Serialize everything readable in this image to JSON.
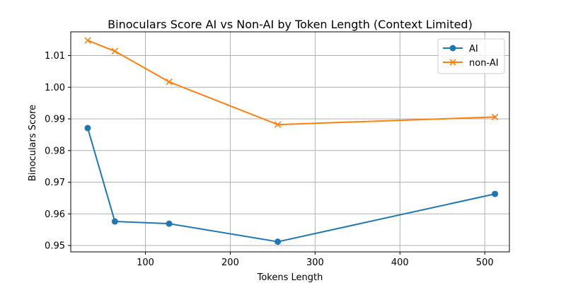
{
  "chart_data": {
    "type": "line",
    "title": "Binoculars Score AI vs Non-AI by Token Length (Context Limited)",
    "xlabel": "Tokens Length",
    "ylabel": "Binoculars Score",
    "xlim": [
      12,
      529
    ],
    "ylim": [
      0.948,
      1.0175
    ],
    "xticks": [
      100,
      200,
      300,
      400,
      500
    ],
    "xtick_labels": [
      "100",
      "200",
      "300",
      "400",
      "500"
    ],
    "yticks": [
      0.95,
      0.96,
      0.97,
      0.98,
      0.99,
      1.0,
      1.01
    ],
    "ytick_labels": [
      "0.95",
      "0.96",
      "0.97",
      "0.98",
      "0.99",
      "1.00",
      "1.01"
    ],
    "grid": true,
    "legend_position": "upper right",
    "series": [
      {
        "name": "AI",
        "color": "#1f77b4",
        "marker": "circle",
        "x": [
          32,
          64,
          128,
          256,
          512
        ],
        "y": [
          0.9871,
          0.9576,
          0.9569,
          0.9512,
          0.9663
        ]
      },
      {
        "name": "non-AI",
        "color": "#ff7f0e",
        "marker": "x",
        "x": [
          32,
          64,
          128,
          256,
          512
        ],
        "y": [
          1.0148,
          1.0114,
          1.0017,
          0.9882,
          0.9906
        ]
      }
    ]
  }
}
